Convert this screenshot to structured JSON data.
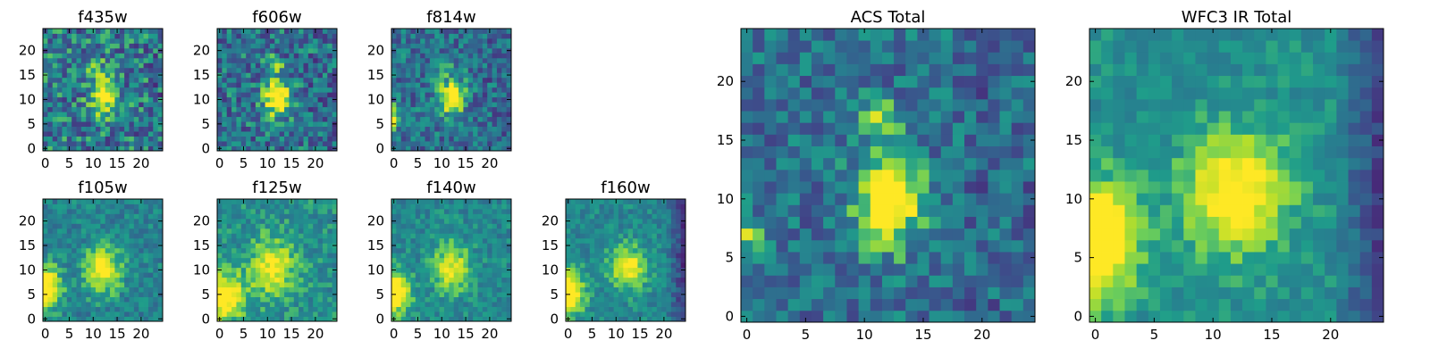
{
  "chart_data": {
    "type": "heatmap",
    "colormap": "viridis",
    "panels": [
      {
        "key": "f435w",
        "title": "f435w",
        "xticks": [
          0,
          5,
          10,
          15,
          20
        ],
        "yticks": [
          0,
          5,
          10,
          15,
          20
        ],
        "xlim": [
          0,
          25
        ],
        "ylim": [
          0,
          25
        ],
        "grid": false,
        "blobs": [
          {
            "x": 12.5,
            "y": 11,
            "sx": 1.6,
            "sy": 2.4,
            "a": 0.75
          },
          {
            "x": 11,
            "y": 17,
            "sx": 1.2,
            "sy": 1.2,
            "a": 0.35
          }
        ],
        "noise": 0.28,
        "base": 0.45
      },
      {
        "key": "f606w",
        "title": "f606w",
        "xticks": [
          0,
          5,
          10,
          15,
          20
        ],
        "yticks": [
          0,
          5,
          10,
          15,
          20
        ],
        "xlim": [
          0,
          25
        ],
        "ylim": [
          0,
          25
        ],
        "grid": false,
        "blobs": [
          {
            "x": 12.5,
            "y": 11,
            "sx": 1.8,
            "sy": 2.6,
            "a": 0.8
          },
          {
            "x": 12,
            "y": 17.5,
            "sx": 1.2,
            "sy": 1.2,
            "a": 0.35
          }
        ],
        "noise": 0.25,
        "base": 0.42
      },
      {
        "key": "f814w",
        "title": "f814w",
        "xticks": [
          0,
          5,
          10,
          15,
          20
        ],
        "yticks": [
          0,
          5,
          10,
          15,
          20
        ],
        "xlim": [
          0,
          25
        ],
        "ylim": [
          0,
          25
        ],
        "grid": false,
        "blobs": [
          {
            "x": 12.5,
            "y": 11,
            "sx": 1.8,
            "sy": 2.4,
            "a": 0.75
          },
          {
            "x": 11.5,
            "y": 17.5,
            "sx": 1.2,
            "sy": 1.2,
            "a": 0.35
          },
          {
            "x": 0,
            "y": 7,
            "sx": 1.2,
            "sy": 1.6,
            "a": 0.6
          }
        ],
        "noise": 0.22,
        "base": 0.42
      },
      {
        "key": "f105w",
        "title": "f105w",
        "xticks": [
          0,
          5,
          10,
          15,
          20
        ],
        "yticks": [
          0,
          5,
          10,
          15,
          20
        ],
        "xlim": [
          0,
          25
        ],
        "ylim": [
          0,
          25
        ],
        "grid": false,
        "blobs": [
          {
            "x": 12.5,
            "y": 10.5,
            "sx": 2.6,
            "sy": 3.2,
            "a": 0.55
          },
          {
            "x": 0,
            "y": 7,
            "sx": 2.4,
            "sy": 3.0,
            "a": 0.75
          }
        ],
        "noise": 0.14,
        "base": 0.5
      },
      {
        "key": "f125w",
        "title": "f125w",
        "xticks": [
          0,
          5,
          10,
          15,
          20
        ],
        "yticks": [
          0,
          5,
          10,
          15,
          20
        ],
        "xlim": [
          0,
          25
        ],
        "ylim": [
          0,
          25
        ],
        "grid": false,
        "blobs": [
          {
            "x": 11.5,
            "y": 11,
            "sx": 3.2,
            "sy": 4.0,
            "a": 0.45
          },
          {
            "x": 1,
            "y": 5,
            "sx": 3.2,
            "sy": 3.6,
            "a": 0.55
          }
        ],
        "noise": 0.14,
        "base": 0.55
      },
      {
        "key": "f140w",
        "title": "f140w",
        "xticks": [
          0,
          5,
          10,
          15,
          20
        ],
        "yticks": [
          0,
          5,
          10,
          15,
          20
        ],
        "xlim": [
          0,
          25
        ],
        "ylim": [
          0,
          25
        ],
        "grid": false,
        "blobs": [
          {
            "x": 12.5,
            "y": 11,
            "sx": 2.6,
            "sy": 3.4,
            "a": 0.45
          },
          {
            "x": 0,
            "y": 6,
            "sx": 2.6,
            "sy": 3.0,
            "a": 0.7
          }
        ],
        "noise": 0.13,
        "base": 0.52
      },
      {
        "key": "f160w",
        "title": "f160w",
        "xticks": [
          0,
          5,
          10,
          15,
          20
        ],
        "yticks": [
          0,
          5,
          10,
          15,
          20
        ],
        "xlim": [
          0,
          25
        ],
        "ylim": [
          0,
          25
        ],
        "grid": false,
        "blobs": [
          {
            "x": 13,
            "y": 11,
            "sx": 2.6,
            "sy": 3.0,
            "a": 0.5
          },
          {
            "x": 0,
            "y": 6,
            "sx": 2.4,
            "sy": 3.0,
            "a": 0.8
          }
        ],
        "noise": 0.12,
        "base": 0.52,
        "darkright": true
      },
      {
        "key": "acs",
        "title": "ACS Total",
        "xticks": [
          0,
          5,
          10,
          15,
          20
        ],
        "yticks": [
          0,
          5,
          10,
          15,
          20
        ],
        "xlim": [
          0,
          25
        ],
        "ylim": [
          0,
          25
        ],
        "grid": false,
        "blobs": [
          {
            "x": 12.5,
            "y": 10.5,
            "sx": 1.8,
            "sy": 2.6,
            "a": 0.85
          },
          {
            "x": 11.5,
            "y": 17.5,
            "sx": 1.2,
            "sy": 1.2,
            "a": 0.4
          },
          {
            "x": 0,
            "y": 7.5,
            "sx": 1.0,
            "sy": 1.2,
            "a": 0.5
          }
        ],
        "noise": 0.2,
        "base": 0.42
      },
      {
        "key": "wfc3",
        "title": "WFC3 IR Total",
        "xticks": [
          0,
          5,
          10,
          15,
          20
        ],
        "yticks": [
          0,
          5,
          10,
          15,
          20
        ],
        "xlim": [
          0,
          25
        ],
        "ylim": [
          0,
          25
        ],
        "grid": false,
        "blobs": [
          {
            "x": 12.5,
            "y": 11,
            "sx": 3.0,
            "sy": 3.6,
            "a": 0.55
          },
          {
            "x": 0,
            "y": 7,
            "sx": 2.6,
            "sy": 3.2,
            "a": 0.85
          }
        ],
        "noise": 0.1,
        "base": 0.55,
        "darkright": true
      }
    ]
  }
}
